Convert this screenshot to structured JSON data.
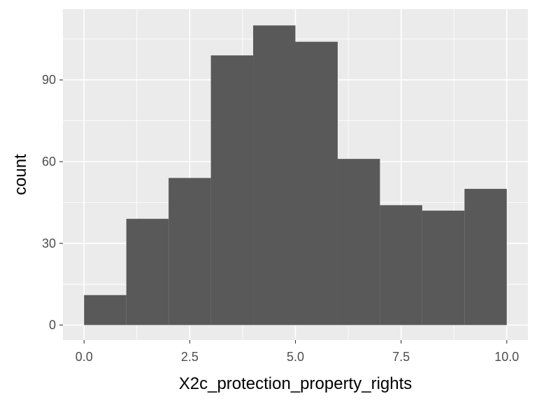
{
  "chart_data": {
    "type": "histogram",
    "title": "",
    "xlabel": "X2c_protection_property_rights",
    "ylabel": "count",
    "bin_width": 1.0,
    "bins": [
      {
        "x_start": 0,
        "x_end": 1,
        "count": 11
      },
      {
        "x_start": 1,
        "x_end": 2,
        "count": 39
      },
      {
        "x_start": 2,
        "x_end": 3,
        "count": 54
      },
      {
        "x_start": 3,
        "x_end": 4,
        "count": 99
      },
      {
        "x_start": 4,
        "x_end": 5,
        "count": 110
      },
      {
        "x_start": 5,
        "x_end": 6,
        "count": 104
      },
      {
        "x_start": 6,
        "x_end": 7,
        "count": 61
      },
      {
        "x_start": 7,
        "x_end": 8,
        "count": 44
      },
      {
        "x_start": 8,
        "x_end": 9,
        "count": 42
      },
      {
        "x_start": 9,
        "x_end": 10,
        "count": 50
      }
    ],
    "xlim": [
      -0.5,
      10.5
    ],
    "ylim": [
      -5.5,
      116
    ],
    "x_ticks": [
      0,
      2.5,
      5,
      7.5,
      10
    ],
    "x_tick_labels": [
      "0.0",
      "2.5",
      "5.0",
      "7.5",
      "10.0"
    ],
    "y_ticks": [
      0,
      30,
      60,
      90
    ],
    "y_tick_labels": [
      "0",
      "30",
      "60",
      "90"
    ],
    "grid": true,
    "colors": {
      "panel_background": "#ebebeb",
      "grid_major": "#ffffff",
      "bar_fill": "#595959",
      "tick_text": "#4d4d4d",
      "title_text": "#000000"
    }
  }
}
